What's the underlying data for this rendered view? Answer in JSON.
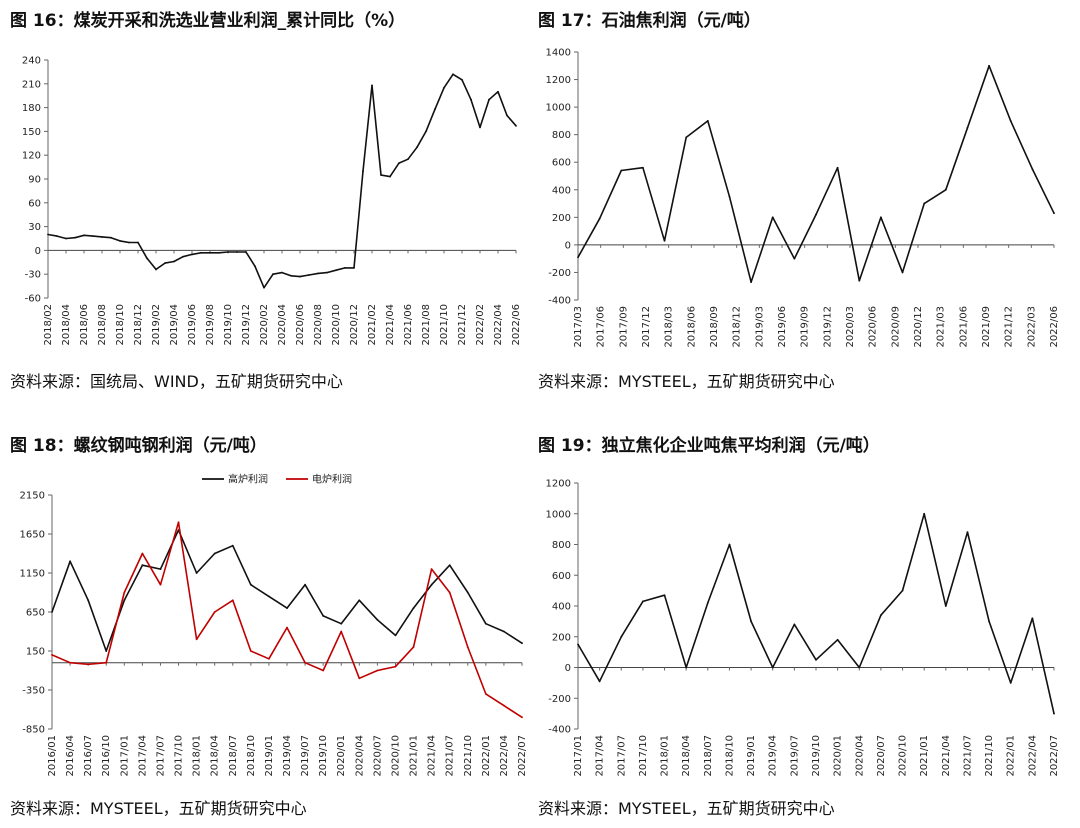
{
  "panels": [
    {
      "title": "图 16：煤炭开采和洗选业营业利润_累计同比（%）",
      "source": "资料来源：国统局、WIND，五矿期货研究中心",
      "chart_data": {
        "type": "line",
        "title": "图 16：煤炭开采和洗选业营业利润_累计同比（%）",
        "x": [
          "2018/02",
          "2018/03",
          "2018/04",
          "2018/05",
          "2018/06",
          "2018/07",
          "2018/08",
          "2018/09",
          "2018/10",
          "2018/11",
          "2018/12",
          "2019/01",
          "2019/02",
          "2019/03",
          "2019/04",
          "2019/05",
          "2019/06",
          "2019/07",
          "2019/08",
          "2019/09",
          "2019/10",
          "2019/11",
          "2019/12",
          "2020/01",
          "2020/02",
          "2020/03",
          "2020/04",
          "2020/05",
          "2020/06",
          "2020/07",
          "2020/08",
          "2020/09",
          "2020/10",
          "2020/11",
          "2020/12",
          "2021/01",
          "2021/02",
          "2021/03",
          "2021/04",
          "2021/05",
          "2021/06",
          "2021/07",
          "2021/08",
          "2021/09",
          "2021/10",
          "2021/11",
          "2021/12",
          "2022/01",
          "2022/02",
          "2022/03",
          "2022/04",
          "2022/05",
          "2022/06"
        ],
        "xticks": [
          "2018/02",
          "2018/04",
          "2018/06",
          "2018/08",
          "2018/10",
          "2018/12",
          "2019/02",
          "2019/04",
          "2019/06",
          "2019/08",
          "2019/10",
          "2019/12",
          "2020/02",
          "2020/04",
          "2020/06",
          "2020/08",
          "2020/10",
          "2020/12",
          "2021/02",
          "2021/04",
          "2021/06",
          "2021/08",
          "2021/10",
          "2021/12",
          "2022/02",
          "2022/04",
          "2022/06"
        ],
        "series": [
          {
            "values": [
              20,
              18,
              15,
              16,
              19,
              18,
              17,
              16,
              12,
              10,
              10,
              -10,
              -24,
              -16,
              -14,
              -8,
              -5,
              -3,
              -3,
              -3,
              -2,
              -2,
              -2,
              -20,
              -47,
              -30,
              -28,
              -32,
              -33,
              -31,
              -29,
              -28,
              -25,
              -22,
              -22,
              100,
              208,
              95,
              93,
              110,
              115,
              130,
              150,
              178,
              205,
              222,
              215,
              190,
              155,
              190,
              200,
              170,
              157
            ]
          }
        ],
        "ylim": [
          -60,
          240
        ],
        "yticks": [
          -60,
          -30,
          0,
          30,
          60,
          90,
          120,
          150,
          180,
          210,
          240
        ],
        "grid": false
      }
    },
    {
      "title": "图 17：石油焦利润（元/吨）",
      "source": "资料来源：MYSTEEL，五矿期货研究中心",
      "chart_data": {
        "type": "line",
        "title": "图 17：石油焦利润（元/吨）",
        "x": [
          "2017/03",
          "2017/06",
          "2017/09",
          "2017/12",
          "2018/03",
          "2018/06",
          "2018/09",
          "2018/12",
          "2019/03",
          "2019/06",
          "2019/09",
          "2019/12",
          "2020/03",
          "2020/06",
          "2020/09",
          "2020/12",
          "2021/03",
          "2021/06",
          "2021/09",
          "2021/12",
          "2022/03",
          "2022/06",
          "2022/08"
        ],
        "xticks": [
          "2017/03",
          "2017/06",
          "2017/09",
          "2017/12",
          "2018/03",
          "2018/06",
          "2018/09",
          "2018/12",
          "2019/03",
          "2019/06",
          "2019/09",
          "2019/12",
          "2020/03",
          "2020/06",
          "2020/09",
          "2020/12",
          "2021/03",
          "2021/06",
          "2021/09",
          "2021/12",
          "2022/03",
          "2022/06"
        ],
        "series": [
          {
            "values": [
              -90,
              190,
              540,
              560,
              30,
              780,
              900,
              350,
              -270,
              200,
              -100,
              220,
              560,
              -260,
              200,
              -200,
              300,
              400,
              850,
              1300,
              900,
              550,
              230
            ]
          }
        ],
        "ylim": [
          -400,
          1400
        ],
        "yticks": [
          -400,
          -200,
          0,
          200,
          400,
          600,
          800,
          1000,
          1200,
          1400
        ],
        "grid": false
      }
    },
    {
      "title": "图 18：螺纹钢吨钢利润（元/吨）",
      "source": "资料来源：MYSTEEL，五矿期货研究中心",
      "chart_data": {
        "type": "line",
        "title": "图 18：螺纹钢吨钢利润（元/吨）",
        "x": [
          "2016/01",
          "2016/04",
          "2016/07",
          "2016/10",
          "2017/01",
          "2017/04",
          "2017/07",
          "2017/10",
          "2018/01",
          "2018/04",
          "2018/07",
          "2018/10",
          "2019/01",
          "2019/04",
          "2019/07",
          "2019/10",
          "2020/01",
          "2020/04",
          "2020/07",
          "2020/10",
          "2021/01",
          "2021/04",
          "2021/07",
          "2021/10",
          "2022/01",
          "2022/04",
          "2022/07"
        ],
        "xticks": [
          "2016/01",
          "2016/04",
          "2016/07",
          "2016/10",
          "2017/01",
          "2017/04",
          "2017/07",
          "2017/10",
          "2018/01",
          "2018/04",
          "2018/07",
          "2018/10",
          "2019/01",
          "2019/04",
          "2019/07",
          "2019/10",
          "2020/01",
          "2020/04",
          "2020/07",
          "2020/10",
          "2021/01",
          "2021/04",
          "2021/07",
          "2021/10",
          "2022/01",
          "2022/04",
          "2022/07"
        ],
        "series": [
          {
            "name": "高炉利润",
            "color": "#111111",
            "values": [
              650,
              1300,
              800,
              150,
              800,
              1250,
              1200,
              1700,
              1150,
              1400,
              1500,
              1000,
              850,
              700,
              1000,
              600,
              500,
              800,
              550,
              350,
              700,
              1000,
              1250,
              900,
              500,
              400,
              250
            ]
          },
          {
            "name": "电炉利润",
            "color": "#c00000",
            "values": [
              100,
              0,
              -20,
              0,
              900,
              1400,
              1000,
              1800,
              300,
              650,
              800,
              150,
              50,
              450,
              0,
              -100,
              400,
              -200,
              -100,
              -50,
              200,
              1200,
              900,
              200,
              -400,
              -550,
              -700
            ]
          }
        ],
        "legend": "top",
        "ylim": [
          -850,
          2150
        ],
        "yticks": [
          -850,
          -350,
          150,
          650,
          1150,
          1650,
          2150
        ],
        "grid": false
      }
    },
    {
      "title": "图 19：独立焦化企业吨焦平均利润（元/吨）",
      "source": "资料来源：MYSTEEL，五矿期货研究中心",
      "chart_data": {
        "type": "line",
        "title": "图 19：独立焦化企业吨焦平均利润（元/吨）",
        "x": [
          "2017/01",
          "2017/04",
          "2017/07",
          "2017/10",
          "2018/01",
          "2018/04",
          "2018/07",
          "2018/10",
          "2019/01",
          "2019/04",
          "2019/07",
          "2019/10",
          "2020/01",
          "2020/04",
          "2020/07",
          "2020/10",
          "2021/01",
          "2021/04",
          "2021/07",
          "2021/10",
          "2022/01",
          "2022/04",
          "2022/07"
        ],
        "xticks": [
          "2017/01",
          "2017/04",
          "2017/07",
          "2017/10",
          "2018/01",
          "2018/04",
          "2018/07",
          "2018/10",
          "2019/01",
          "2019/04",
          "2019/07",
          "2019/10",
          "2020/01",
          "2020/04",
          "2020/07",
          "2020/10",
          "2021/01",
          "2021/04",
          "2021/07",
          "2021/10",
          "2022/01",
          "2022/04",
          "2022/07"
        ],
        "series": [
          {
            "values": [
              150,
              -90,
              200,
              430,
              470,
              0,
              420,
              800,
              300,
              0,
              280,
              50,
              180,
              0,
              340,
              500,
              1000,
              400,
              880,
              300,
              -100,
              320,
              -300
            ]
          }
        ],
        "ylim": [
          -400,
          1200
        ],
        "yticks": [
          -400,
          -200,
          0,
          200,
          400,
          600,
          800,
          1000,
          1200
        ],
        "grid": false
      }
    }
  ]
}
